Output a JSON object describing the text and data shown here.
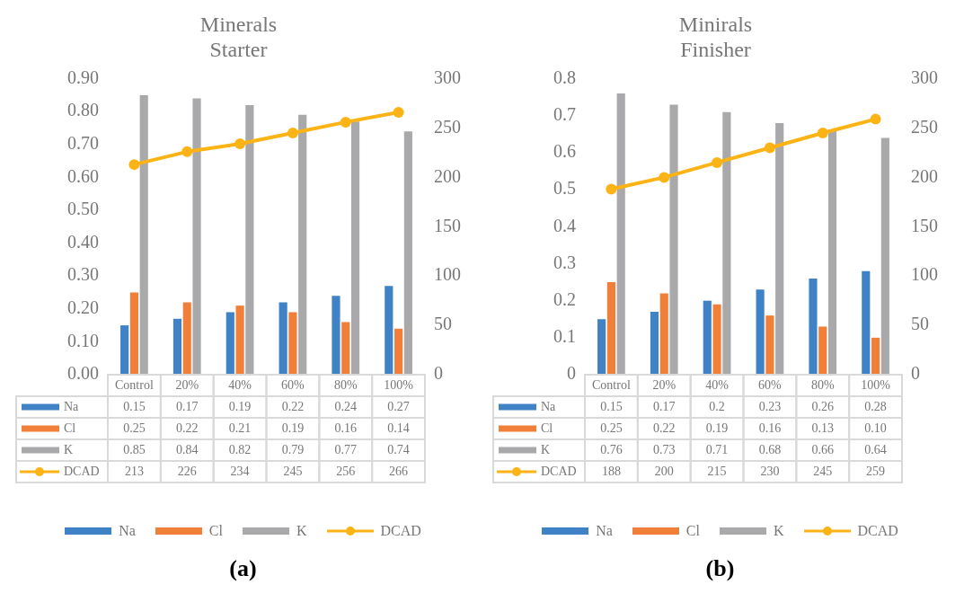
{
  "chart_data": [
    {
      "type": "bar",
      "title": "Minerals",
      "subtitle": "Starter",
      "categories": [
        "Control",
        "20%",
        "40%",
        "60%",
        "80%",
        "100%"
      ],
      "series": [
        {
          "name": "Na",
          "color": "#3f83c6",
          "values": [
            0.15,
            0.17,
            0.19,
            0.22,
            0.24,
            0.27
          ],
          "value_labels": [
            "0.15",
            "0.17",
            "0.19",
            "0.22",
            "0.24",
            "0.27"
          ]
        },
        {
          "name": "Cl",
          "color": "#f07f3a",
          "values": [
            0.25,
            0.22,
            0.21,
            0.19,
            0.16,
            0.14
          ],
          "value_labels": [
            "0.25",
            "0.22",
            "0.21",
            "0.19",
            "0.16",
            "0.14"
          ]
        },
        {
          "name": "K",
          "color": "#a9a9ab",
          "values": [
            0.85,
            0.84,
            0.82,
            0.79,
            0.77,
            0.74
          ],
          "value_labels": [
            "0.85",
            "0.84",
            "0.82",
            "0.79",
            "0.77",
            "0.74"
          ]
        },
        {
          "name": "DCAD",
          "type": "line",
          "axis": "y2",
          "marker": "circle",
          "color": "#fbb315",
          "values": [
            213,
            226,
            234,
            245,
            256,
            266
          ],
          "value_labels": [
            "213",
            "226",
            "234",
            "245",
            "256",
            "266"
          ]
        }
      ],
      "ylim": [
        0,
        0.9
      ],
      "yticks": [
        {
          "value": 0,
          "label": "0.00"
        },
        {
          "value": 0.1,
          "label": "0.10"
        },
        {
          "value": 0.2,
          "label": "0.20"
        },
        {
          "value": 0.3,
          "label": "0.30"
        },
        {
          "value": 0.4,
          "label": "0.40"
        },
        {
          "value": 0.5,
          "label": "0.50"
        },
        {
          "value": 0.6,
          "label": "0.60"
        },
        {
          "value": 0.7,
          "label": "0.70"
        },
        {
          "value": 0.8,
          "label": "0.80"
        },
        {
          "value": 0.9,
          "label": "0.90"
        }
      ],
      "y2lim": [
        0,
        300
      ],
      "y2ticks": [
        0,
        50,
        100,
        150,
        200,
        250,
        300
      ],
      "grid": false,
      "legend": "bottom",
      "annotations": [
        "(a)"
      ]
    },
    {
      "type": "bar",
      "title": "Minirals",
      "subtitle": "Finisher",
      "categories": [
        "Control",
        "20%",
        "40%",
        "60%",
        "80%",
        "100%"
      ],
      "series": [
        {
          "name": "Na",
          "color": "#3f83c6",
          "values": [
            0.15,
            0.17,
            0.2,
            0.23,
            0.26,
            0.28
          ],
          "value_labels": [
            "0.15",
            "0.17",
            "0.2",
            "0.23",
            "0.26",
            "0.28"
          ]
        },
        {
          "name": "Cl",
          "color": "#f07f3a",
          "values": [
            0.25,
            0.22,
            0.19,
            0.16,
            0.13,
            0.1
          ],
          "value_labels": [
            "0.25",
            "0.22",
            "0.19",
            "0.16",
            "0.13",
            "0.10"
          ]
        },
        {
          "name": "K",
          "color": "#a9a9ab",
          "values": [
            0.76,
            0.73,
            0.71,
            0.68,
            0.66,
            0.64
          ],
          "value_labels": [
            "0.76",
            "0.73",
            "0.71",
            "0.68",
            "0.66",
            "0.64"
          ]
        },
        {
          "name": "DCAD",
          "type": "line",
          "axis": "y2",
          "marker": "circle",
          "color": "#fbb315",
          "values": [
            188,
            200,
            215,
            230,
            245,
            259
          ],
          "value_labels": [
            "188",
            "200",
            "215",
            "230",
            "245",
            "259"
          ]
        }
      ],
      "ylim": [
        0,
        0.8
      ],
      "yticks": [
        0,
        0.1,
        0.2,
        0.3,
        0.4,
        0.5,
        0.6,
        0.7,
        0.8
      ],
      "y2lim": [
        0,
        300
      ],
      "y2ticks": [
        0,
        50,
        100,
        150,
        200,
        250,
        300
      ],
      "grid": false,
      "legend": "bottom",
      "annotations": [
        "(b)"
      ]
    }
  ]
}
